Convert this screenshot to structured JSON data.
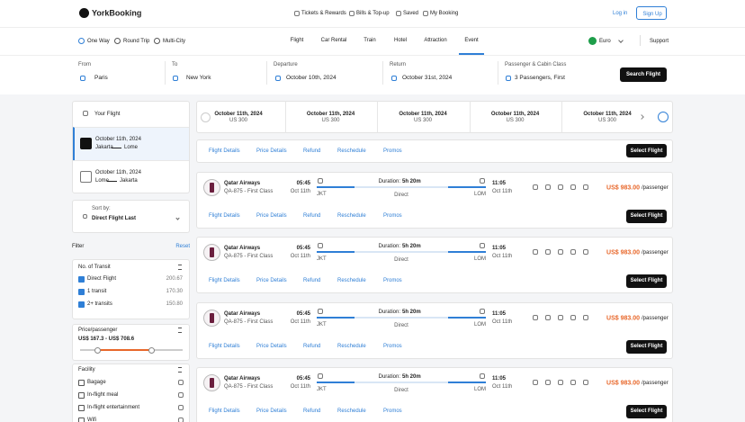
{
  "header": {
    "brand": "YorkBooking",
    "links": [
      "Tickets & Rewards",
      "Bills & Top-up",
      "Saved",
      "My Booking"
    ],
    "login": "Log in",
    "signup": "Sign Up"
  },
  "nav": {
    "trip_types": [
      "One Way",
      "Round Trip",
      "Multi-City"
    ],
    "tabs": [
      "Flight",
      "Car Rental",
      "Train",
      "Hotel",
      "Attraction",
      "Event"
    ],
    "active_tab": 5,
    "currency": "Euro",
    "support": "Support"
  },
  "search": {
    "fields": [
      {
        "label": "From",
        "value": "Paris"
      },
      {
        "label": "To",
        "value": "New York"
      },
      {
        "label": "Departure",
        "value": "October 10th, 2024"
      },
      {
        "label": "Return",
        "value": "October 31st, 2024"
      },
      {
        "label": "Passenger & Cabin Class",
        "value": "3 Passengers, First"
      }
    ],
    "button": "Search Flight"
  },
  "sidebar": {
    "your_flight": "Your Flight",
    "legs": [
      {
        "date": "October 11th, 2024",
        "from": "Jakarta",
        "to": "Lome"
      },
      {
        "date": "October 11th, 2024",
        "from": "Lome",
        "to": "Jakarta"
      }
    ],
    "sort_label": "Sort by:",
    "sort_value": "Direct Flight Last",
    "filter": "Filter",
    "reset": "Reset",
    "transit": {
      "title": "No. of Transit",
      "options": [
        {
          "label": "Direct Flight",
          "count": "200.67"
        },
        {
          "label": "1 transit",
          "count": "170.30"
        },
        {
          "label": "2+ transits",
          "count": "150.80"
        }
      ]
    },
    "price": {
      "title": "Price/passenger",
      "range": "US$ 167.3 - US$ 708.6"
    },
    "facility": {
      "title": "Facility",
      "options": [
        "Bagage",
        "In-flight meal",
        "In-flight entertainment",
        "Wifi"
      ]
    }
  },
  "dates": [
    {
      "date": "October 11th, 2024",
      "price": "US 300"
    },
    {
      "date": "October 11th, 2024",
      "price": "US 300"
    },
    {
      "date": "October 11th, 2024",
      "price": "US 300"
    },
    {
      "date": "October 11th, 2024",
      "price": "US 300"
    },
    {
      "date": "October 11th, 2024",
      "price": "US 300"
    }
  ],
  "results": [
    {
      "tabs": [
        "Flight Details",
        "Price Details",
        "Refund",
        "Reschedule",
        "Promos"
      ],
      "button": "Select Flight"
    },
    {
      "airline": "Qatar Airways",
      "code": "QA-875 - First Class",
      "dep_time": "05:45",
      "dep_date": "Oct 11th",
      "dep_code": "JKT",
      "duration_label": "Duration:",
      "duration": "5h 20m",
      "stops": "Direct",
      "arr_time": "11:05",
      "arr_date": "Oct 11th",
      "arr_code": "LOM",
      "price": "US$ 983.00",
      "per": "/passenger",
      "tabs": [
        "Flight Details",
        "Price Details",
        "Refund",
        "Reschedule",
        "Promos"
      ],
      "button": "Select Flight"
    },
    {
      "airline": "Qatar Airways",
      "code": "QA-875 - First Class",
      "dep_time": "05:45",
      "dep_date": "Oct 11th",
      "dep_code": "JKT",
      "duration_label": "Duration:",
      "duration": "5h 20m",
      "stops": "Direct",
      "arr_time": "11:05",
      "arr_date": "Oct 11th",
      "arr_code": "LOM",
      "price": "US$ 983.00",
      "per": "/passenger",
      "tabs": [
        "Flight Details",
        "Price Details",
        "Refund",
        "Reschedule",
        "Promos"
      ],
      "button": "Select Flight"
    },
    {
      "airline": "Qatar Airways",
      "code": "QA-875 - First Class",
      "dep_time": "05:45",
      "dep_date": "Oct 11th",
      "dep_code": "JKT",
      "duration_label": "Duration:",
      "duration": "5h 20m",
      "stops": "Direct",
      "arr_time": "11:05",
      "arr_date": "Oct 11th",
      "arr_code": "LOM",
      "price": "US$ 983.00",
      "per": "/passenger",
      "tabs": [
        "Flight Details",
        "Price Details",
        "Refund",
        "Reschedule",
        "Promos"
      ],
      "button": "Select Flight"
    },
    {
      "airline": "Qatar Airways",
      "code": "QA-875 - First Class",
      "dep_time": "05:45",
      "dep_date": "Oct 11th",
      "dep_code": "JKT",
      "duration_label": "Duration:",
      "duration": "5h 20m",
      "stops": "Direct",
      "arr_time": "11:05",
      "arr_date": "Oct 11th",
      "arr_code": "LOM",
      "price": "US$ 983.00",
      "per": "/passenger",
      "tabs": [
        "Flight Details",
        "Price Details",
        "Refund",
        "Reschedule",
        "Promos"
      ],
      "button": "Select Flight"
    }
  ]
}
